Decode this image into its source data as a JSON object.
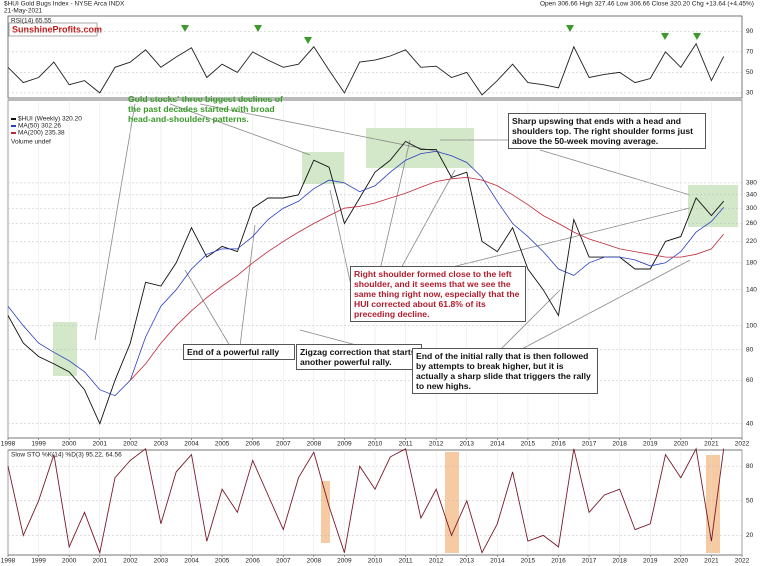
{
  "chart_data": [
    {
      "type": "line",
      "title": "RSI(14) 65.55",
      "color": "#222",
      "x": [
        1998,
        1998.5,
        1999,
        1999.5,
        2000,
        2000.5,
        2001,
        2001.5,
        2002,
        2002.5,
        2003,
        2003.5,
        2004,
        2004.5,
        2005,
        2005.5,
        2006,
        2006.5,
        2007,
        2007.5,
        2008,
        2008.5,
        2009,
        2009.5,
        2010,
        2010.5,
        2011,
        2011.5,
        2012,
        2012.5,
        2013,
        2013.5,
        2014,
        2014.5,
        2015,
        2015.5,
        2016,
        2016.5,
        2017,
        2017.5,
        2018,
        2018.5,
        2019,
        2019.5,
        2020,
        2020.5,
        2021,
        2021.4
      ],
      "values": [
        55,
        40,
        45,
        60,
        38,
        42,
        30,
        55,
        60,
        72,
        55,
        65,
        74,
        45,
        58,
        50,
        70,
        62,
        55,
        58,
        75,
        52,
        30,
        60,
        62,
        66,
        72,
        55,
        56,
        45,
        50,
        28,
        42,
        58,
        40,
        38,
        35,
        75,
        45,
        48,
        50,
        40,
        44,
        70,
        55,
        78,
        42,
        65.55
      ],
      "xlim": [
        1998,
        2022
      ],
      "ylim": [
        25,
        105
      ],
      "yticks": [
        30,
        50,
        70,
        90
      ],
      "grid": true
    },
    {
      "type": "line",
      "title": "$HUI Gold Bugs Index - NYSE Arca INDX",
      "subtitle": "21-May-2021",
      "quote": "Open 306.66  High 327.46  Low 306.66  Close 320.20  Chg +13.64 (+4.45%)",
      "logo": "SunshineProfits.com",
      "legend_extra": "Volume undef",
      "x": [
        1998,
        1998.5,
        1999,
        1999.5,
        2000,
        2000.5,
        2001,
        2001.5,
        2002,
        2002.5,
        2003,
        2003.5,
        2004,
        2004.5,
        2005,
        2005.5,
        2006,
        2006.5,
        2007,
        2007.5,
        2008,
        2008.5,
        2009,
        2009.5,
        2010,
        2010.5,
        2011,
        2011.5,
        2012,
        2012.5,
        2013,
        2013.5,
        2014,
        2014.5,
        2015,
        2015.5,
        2016,
        2016.5,
        2017,
        2017.5,
        2018,
        2018.5,
        2019,
        2019.5,
        2020,
        2020.5,
        2021,
        2021.4
      ],
      "series": [
        {
          "name": "$HUI (Weekly) 320.20",
          "color": "#111",
          "values": [
            110,
            85,
            75,
            70,
            65,
            55,
            40,
            60,
            85,
            150,
            145,
            180,
            250,
            190,
            210,
            200,
            300,
            330,
            330,
            340,
            470,
            440,
            260,
            330,
            420,
            470,
            560,
            520,
            520,
            400,
            420,
            220,
            200,
            250,
            170,
            140,
            110,
            270,
            190,
            190,
            190,
            170,
            170,
            220,
            230,
            330,
            280,
            320.2
          ]
        },
        {
          "name": "MA(50) 302.26",
          "color": "#2a3fc0",
          "values": [
            120,
            100,
            85,
            78,
            72,
            65,
            55,
            52,
            60,
            90,
            120,
            140,
            170,
            195,
            205,
            205,
            230,
            270,
            300,
            320,
            360,
            390,
            380,
            350,
            370,
            420,
            470,
            500,
            510,
            490,
            460,
            400,
            320,
            260,
            230,
            200,
            170,
            160,
            180,
            190,
            190,
            185,
            175,
            180,
            200,
            240,
            265,
            302.26
          ]
        },
        {
          "name": "MA(200) 235.38",
          "color": "#c0283a",
          "values": [
            null,
            null,
            null,
            null,
            null,
            null,
            null,
            null,
            60,
            70,
            85,
            100,
            115,
            130,
            145,
            160,
            180,
            200,
            220,
            240,
            260,
            280,
            300,
            305,
            315,
            330,
            345,
            365,
            385,
            395,
            400,
            390,
            370,
            340,
            310,
            280,
            260,
            240,
            225,
            215,
            205,
            200,
            195,
            190,
            190,
            195,
            205,
            235.38
          ]
        }
      ],
      "xlim": [
        1998,
        2022
      ],
      "ylim": [
        35,
        825
      ],
      "log_y": true,
      "yticks": [
        40,
        60,
        80,
        100,
        140,
        180,
        220,
        260,
        300,
        340,
        380
      ],
      "xticks": [
        1998,
        1999,
        2000,
        2001,
        2002,
        2003,
        2004,
        2005,
        2006,
        2007,
        2008,
        2009,
        2010,
        2011,
        2012,
        2013,
        2014,
        2015,
        2016,
        2017,
        2018,
        2019,
        2020,
        2021,
        2022
      ],
      "grid": true,
      "annotations": [
        "Gold stocks' three biggest declines of the past decades started with broad head-and-shoulders patterns.",
        "Sharp upswing that ends with a head and shoulders top. The right shoulder forms just above the 50-week moving average.",
        "Right shoulder formed close to the left shoulder, and it seems that we see the same thing right now, especially that the HUI corrected about 61.8% of its preceding decline.",
        "End of a powerful rally",
        "Zigzag correction that starts another powerful rally.",
        "End of the initial rally that is then followed by attempts to break higher, but it is actually a sharp slide that triggers the rally to new highs."
      ]
    },
    {
      "type": "line",
      "title": "Slow STO %K(14) %D(3) 95.22, 64.56",
      "color": "#7a1a2a",
      "x": [
        1998,
        1998.5,
        1999,
        1999.5,
        2000,
        2000.5,
        2001,
        2001.5,
        2002,
        2002.5,
        2003,
        2003.5,
        2004,
        2004.5,
        2005,
        2005.5,
        2006,
        2006.5,
        2007,
        2007.5,
        2008,
        2008.5,
        2009,
        2009.5,
        2010,
        2010.5,
        2011,
        2011.5,
        2012,
        2012.5,
        2013,
        2013.5,
        2014,
        2014.5,
        2015,
        2015.5,
        2016,
        2016.5,
        2017,
        2017.5,
        2018,
        2018.5,
        2019,
        2019.5,
        2020,
        2020.5,
        2021,
        2021.4
      ],
      "values": [
        80,
        20,
        50,
        90,
        10,
        40,
        5,
        70,
        85,
        95,
        30,
        75,
        90,
        15,
        60,
        40,
        85,
        55,
        25,
        70,
        92,
        45,
        5,
        80,
        60,
        88,
        95,
        35,
        60,
        20,
        50,
        5,
        30,
        75,
        15,
        20,
        10,
        95,
        40,
        55,
        60,
        25,
        30,
        90,
        70,
        95,
        15,
        95.22
      ],
      "xlim": [
        1998,
        2022
      ],
      "ylim": [
        3,
        94
      ],
      "yticks": [
        20,
        50,
        80
      ],
      "xticks": [
        1998,
        1999,
        2000,
        2001,
        2002,
        2003,
        2004,
        2005,
        2006,
        2007,
        2008,
        2009,
        2010,
        2011,
        2012,
        2013,
        2014,
        2015,
        2016,
        2017,
        2018,
        2019,
        2020,
        2021,
        2022
      ],
      "grid": true
    }
  ]
}
